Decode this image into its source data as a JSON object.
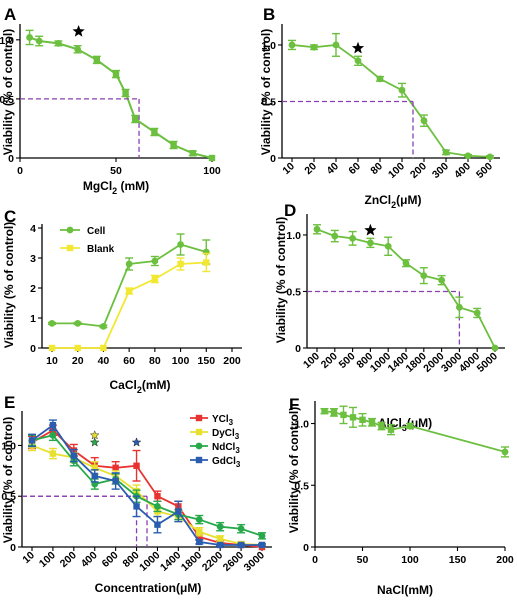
{
  "colors": {
    "green": "#6cbf3f",
    "yellow": "#f2e832",
    "red": "#e8322f",
    "yellowE": "#e8e030",
    "greenE": "#27a84a",
    "blue": "#2a5db0",
    "dash": "#8a3fb0"
  },
  "chart_data": [
    {
      "id": "A",
      "panel_label": "A",
      "type": "line",
      "xlabel": "MgCl",
      "xlabel_sub": "2",
      "xlabel_after": " (mM)",
      "ylabel": "Viability (% of control)",
      "xlim": [
        0,
        100
      ],
      "ylim": [
        0,
        1.1
      ],
      "x_ticks": [
        "0",
        "50",
        "100"
      ],
      "y_ticks": [
        "0",
        "0.5",
        "1.0"
      ],
      "series": [
        {
          "x": [
            5,
            10,
            20,
            30,
            40,
            50,
            55,
            60,
            70,
            80,
            90,
            100
          ],
          "y": [
            1.02,
            0.99,
            0.97,
            0.92,
            0.83,
            0.71,
            0.55,
            0.33,
            0.22,
            0.11,
            0.04,
            0.0
          ],
          "err": [
            0.06,
            0.04,
            0.02,
            0.03,
            0.03,
            0.03,
            0.03,
            0.03,
            0.03,
            0.03,
            0.02,
            0.0
          ],
          "fit": true
        }
      ],
      "star_x": 30,
      "ic50": {
        "x": 62,
        "y": 0.5
      }
    },
    {
      "id": "B",
      "panel_label": "B",
      "type": "line",
      "xlabel": "ZnCl",
      "xlabel_sub": "2",
      "xlabel_after": "(μM)",
      "ylabel": "Viability (% of control)",
      "categories": [
        "10",
        "20",
        "40",
        "60",
        "80",
        "100",
        "200",
        "300",
        "400",
        "500"
      ],
      "ylim": [
        0,
        1.15
      ],
      "y_ticks": [
        "0",
        "0.5",
        "1.0"
      ],
      "series": [
        {
          "values": [
            1.0,
            0.98,
            1.0,
            0.86,
            0.7,
            0.6,
            0.33,
            0.05,
            0.02,
            0.01
          ],
          "err": [
            0.04,
            0.02,
            0.1,
            0.04,
            0.02,
            0.06,
            0.05,
            0.02,
            0.01,
            0.01
          ]
        }
      ],
      "star_index": 3,
      "ic50": {
        "index": 5.5,
        "y": 0.5
      }
    },
    {
      "id": "C",
      "panel_label": "C",
      "type": "line",
      "xlabel": "CaCl",
      "xlabel_sub": "2",
      "xlabel_after": "(mM)",
      "ylabel": "Viability (% of control)",
      "categories": [
        "10",
        "20",
        "40",
        "60",
        "80",
        "100",
        "150",
        "200"
      ],
      "ylim": [
        0,
        4
      ],
      "y_ticks": [
        "0",
        "1",
        "2",
        "3",
        "4"
      ],
      "series": [
        {
          "name": "Cell",
          "values": [
            0.82,
            0.82,
            0.72,
            2.8,
            2.9,
            3.45,
            3.2,
            null
          ],
          "err": [
            0.03,
            0.03,
            0.04,
            0.2,
            0.15,
            0.35,
            0.4,
            null
          ]
        },
        {
          "name": "Blank",
          "values": [
            0.0,
            0.0,
            0.0,
            1.9,
            2.3,
            2.8,
            2.85,
            null
          ],
          "err": [
            0.0,
            0.0,
            0.0,
            0.1,
            0.12,
            0.2,
            0.3,
            null
          ]
        }
      ]
    },
    {
      "id": "D",
      "panel_label": "D",
      "type": "line",
      "xlabel": "AlCl",
      "xlabel_sub": "3",
      "xlabel_after": "(μM)",
      "ylabel": "Viability (% of control)",
      "categories": [
        "100",
        "200",
        "500",
        "800",
        "1000",
        "1400",
        "1800",
        "2000",
        "3000",
        "4000",
        "5000"
      ],
      "ylim": [
        0,
        1.15
      ],
      "y_ticks": [
        "0",
        "0.5",
        "1.0"
      ],
      "series": [
        {
          "values": [
            1.05,
            0.99,
            0.97,
            0.93,
            0.9,
            0.75,
            0.64,
            0.6,
            0.36,
            0.31,
            0.0
          ],
          "err": [
            0.04,
            0.05,
            0.06,
            0.04,
            0.08,
            0.03,
            0.07,
            0.04,
            0.09,
            0.04,
            0.0
          ]
        }
      ],
      "star_index": 3,
      "ic50": {
        "index": 8.0,
        "y": 0.5
      }
    },
    {
      "id": "E",
      "panel_label": "E",
      "type": "line",
      "xlabel": "Concentration(μM)",
      "ylabel": "Viability (% of control)",
      "categories": [
        "10",
        "100",
        "200",
        "400",
        "600",
        "800",
        "1000",
        "1400",
        "1800",
        "2200",
        "2600",
        "3000"
      ],
      "ylim": [
        0,
        1.3
      ],
      "y_ticks": [
        "0",
        "0.5",
        "1.0"
      ],
      "series": [
        {
          "name": "YCl",
          "name_sub": "3",
          "color_key": "red",
          "values": [
            1.03,
            1.15,
            0.95,
            0.8,
            0.78,
            0.8,
            0.5,
            0.4,
            0.1,
            0.04,
            0.02,
            0.0
          ],
          "err": [
            0.06,
            0.05,
            0.06,
            0.08,
            0.06,
            0.15,
            0.05,
            0.05,
            0.03,
            0.02,
            0.01,
            0.0
          ]
        },
        {
          "name": "DyCl",
          "name_sub": "3",
          "color_key": "yellowE",
          "values": [
            1.0,
            0.92,
            0.88,
            0.78,
            0.7,
            0.55,
            0.35,
            0.3,
            0.15,
            0.08,
            0.03,
            0.02
          ],
          "err": [
            0.05,
            0.05,
            0.05,
            0.06,
            0.05,
            0.06,
            0.05,
            0.05,
            0.04,
            0.03,
            0.02,
            0.01
          ]
        },
        {
          "name": "NdCl",
          "name_sub": "3",
          "color_key": "greenE",
          "values": [
            1.05,
            1.1,
            0.85,
            0.62,
            0.67,
            0.5,
            0.4,
            0.32,
            0.27,
            0.2,
            0.18,
            0.11
          ],
          "err": [
            0.05,
            0.05,
            0.05,
            0.05,
            0.05,
            0.06,
            0.05,
            0.05,
            0.04,
            0.04,
            0.04,
            0.03
          ]
        },
        {
          "name": "GdCl",
          "name_sub": "3",
          "color_key": "blue",
          "values": [
            1.05,
            1.2,
            0.9,
            0.7,
            0.65,
            0.4,
            0.22,
            0.35,
            0.05,
            0.02,
            0.02,
            0.02
          ],
          "err": [
            0.06,
            0.05,
            0.06,
            0.06,
            0.08,
            0.1,
            0.08,
            0.1,
            0.02,
            0.01,
            0.01,
            0.01
          ]
        }
      ],
      "stars": [
        {
          "index": 3,
          "color_key": "yellowE",
          "y": 1.1
        },
        {
          "index": 3,
          "color_key": "greenE",
          "y": 1.03
        },
        {
          "index": 5,
          "color_key": "blue",
          "y": 1.03
        }
      ],
      "ic50_lines": [
        {
          "index": 5.0,
          "y": 0.5
        },
        {
          "index": 5.5,
          "y": 0.5
        }
      ]
    },
    {
      "id": "F",
      "panel_label": "F",
      "type": "line",
      "xlabel": "NaCl(mM)",
      "ylabel": "Viability (% of control)",
      "xlim": [
        0,
        200
      ],
      "ylim": [
        0,
        1.15
      ],
      "x_ticks": [
        "0",
        "50",
        "100",
        "150",
        "200"
      ],
      "y_ticks": [
        "0",
        "0.5",
        "1.0"
      ],
      "series": [
        {
          "x": [
            10,
            20,
            30,
            40,
            50,
            60,
            70,
            80,
            100,
            200
          ],
          "y": [
            1.1,
            1.09,
            1.07,
            1.05,
            1.03,
            1.01,
            0.98,
            0.95,
            0.98,
            0.77
          ],
          "err": [
            0.02,
            0.03,
            0.07,
            0.08,
            0.05,
            0.03,
            0.03,
            0.04,
            0.02,
            0.04
          ]
        }
      ]
    }
  ]
}
